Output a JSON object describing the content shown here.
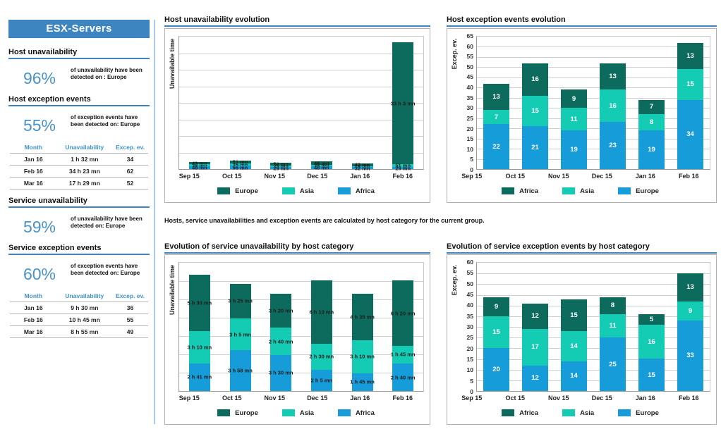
{
  "sidebar": {
    "title": "ESX-Servers",
    "sections": [
      {
        "heading": "Host unavailability",
        "percent": "96%",
        "desc": "of unavailability have been detected on :",
        "desc_bold": "Europe"
      },
      {
        "heading": "Host exception events",
        "percent": "55%",
        "desc": "of exception events have been detected on:",
        "desc_bold": "Europe"
      },
      {
        "heading": "Service unavailability",
        "percent": "59%",
        "desc": "of unavailability have been detected on:",
        "desc_bold": "Europe"
      },
      {
        "heading": "Service exception events",
        "percent": "60%",
        "desc": "of exception events have been detected on:",
        "desc_bold": "Europe"
      }
    ],
    "host_table": {
      "headers": [
        "Month",
        "Unavailability",
        "Excep. ev."
      ],
      "rows": [
        [
          "Jan 16",
          "1 h 32 mn",
          "34"
        ],
        [
          "Feb 16",
          "34 h 23 mn",
          "62"
        ],
        [
          "Mar 16",
          "17 h 29 mn",
          "52"
        ]
      ]
    },
    "service_table": {
      "headers": [
        "Month",
        "Unavailability",
        "Excep. ev."
      ],
      "rows": [
        [
          "Jan 16",
          "9 h 30 mn",
          "36"
        ],
        [
          "Feb 16",
          "10 h 45 mn",
          "55"
        ],
        [
          "Mar 16",
          "8 h 55 mn",
          "49"
        ]
      ]
    }
  },
  "note": "Hosts, service unavailabilities and exception events are calculated by host category for the current group.",
  "colors": {
    "dark": "#0d6b5e",
    "teal": "#14cbb4",
    "blue": "#169dd9",
    "accent_blue": "#3d85c1",
    "grid": "#cfcfcf"
  },
  "chart_data": [
    {
      "type": "bar",
      "stacked": true,
      "title": "Host unavailability evolution",
      "ylabel": "Unavailable time",
      "unit": "minutes",
      "categories": [
        "Sep 15",
        "Oct 15",
        "Nov 15",
        "Dec 15",
        "Jan 16",
        "Feb 16"
      ],
      "series": [
        {
          "name": "Europe",
          "color_key": "dark",
          "values": [
            43,
            51,
            52,
            48,
            42,
            1983
          ],
          "labels": [
            "43 mn",
            "51 mn",
            "52 mn",
            "48 mn",
            "42 mn",
            "33 h 3 mn"
          ]
        },
        {
          "name": "Asia",
          "color_key": "teal",
          "values": [
            28,
            35,
            25,
            25,
            18,
            51
          ],
          "labels": [
            "28 mn",
            "35 mn",
            "25 mn",
            "25 mn",
            "18 mn",
            "51 mn"
          ]
        },
        {
          "name": "Africa",
          "color_key": "blue",
          "values": [
            48,
            55,
            29,
            48,
            32,
            29
          ],
          "labels": [
            "48 mn",
            "55 mn",
            "29 mn",
            "48 mn",
            "32 mn",
            "29 mn"
          ]
        }
      ],
      "ymax": 2160,
      "gridlines": 8,
      "legend": [
        "Europe",
        "Asia",
        "Africa"
      ],
      "value_label_style": "dark-outside",
      "grid": true,
      "legend_position": "bottom"
    },
    {
      "type": "bar",
      "stacked": true,
      "title": "Host exception events evolution",
      "ylabel": "Excep. ev.",
      "categories": [
        "Sep 15",
        "Oct 15",
        "Nov 15",
        "Dec 15",
        "Jan 16",
        "Feb 16"
      ],
      "series": [
        {
          "name": "Africa",
          "color_key": "dark",
          "values": [
            13,
            16,
            9,
            13,
            7,
            13
          ]
        },
        {
          "name": "Asia",
          "color_key": "teal",
          "values": [
            7,
            15,
            11,
            16,
            8,
            15
          ]
        },
        {
          "name": "Europe",
          "color_key": "blue",
          "values": [
            22,
            21,
            19,
            23,
            19,
            34
          ]
        }
      ],
      "ymax": 65,
      "tick_step": 5,
      "legend": [
        "Africa",
        "Asia",
        "Europe"
      ],
      "value_label_style": "white-inside",
      "grid": true,
      "legend_position": "bottom"
    },
    {
      "type": "bar",
      "stacked": true,
      "title": "Evolution of service unavailability by host category",
      "ylabel": "Unavailable time",
      "unit": "minutes",
      "categories": [
        "Sep 15",
        "Oct 15",
        "Nov 15",
        "Dec 15",
        "Jan 16",
        "Feb 16"
      ],
      "series": [
        {
          "name": "Europe",
          "color_key": "dark",
          "values": [
            330,
            205,
            200,
            370,
            275,
            380
          ],
          "labels": [
            "5 h 30 mn",
            "3 h 25 mn",
            "3 h 20 mn",
            "6 h 10 mn",
            "4 h 35 mn",
            "6 h 20 mn"
          ]
        },
        {
          "name": "Asia",
          "color_key": "teal",
          "values": [
            190,
            185,
            160,
            150,
            190,
            105
          ],
          "labels": [
            "3 h 10 mn",
            "3 h 5 mn",
            "2 h 40 mn",
            "2 h 30 mn",
            "3 h 10 mn",
            "1 h 45 mn"
          ]
        },
        {
          "name": "Africa",
          "color_key": "blue",
          "values": [
            161,
            238,
            210,
            125,
            105,
            160
          ],
          "labels": [
            "2 h 41 mn",
            "3 h 58 mn",
            "3 h 30 mn",
            "2 h 5 mn",
            "1 h 45 mn",
            "2 h 40 mn"
          ]
        }
      ],
      "ymax": 750,
      "gridlines": 7,
      "legend": [
        "Europe",
        "Asia",
        "Africa"
      ],
      "value_label_style": "dark-outside",
      "grid": true,
      "legend_position": "bottom"
    },
    {
      "type": "bar",
      "stacked": true,
      "title": "Evolution of service exception events by host category",
      "ylabel": "Excep. ev.",
      "categories": [
        "Sep 15",
        "Oct 15",
        "Nov 15",
        "Dec 15",
        "Jan 16",
        "Feb 16"
      ],
      "series": [
        {
          "name": "Africa",
          "color_key": "dark",
          "values": [
            9,
            12,
            15,
            8,
            5,
            13
          ]
        },
        {
          "name": "Asia",
          "color_key": "teal",
          "values": [
            15,
            17,
            14,
            11,
            16,
            9
          ]
        },
        {
          "name": "Europe",
          "color_key": "blue",
          "values": [
            20,
            12,
            14,
            25,
            15,
            33
          ]
        }
      ],
      "ymax": 60,
      "tick_step": 5,
      "legend": [
        "Africa",
        "Asia",
        "Europe"
      ],
      "value_label_style": "white-inside",
      "grid": true,
      "legend_position": "bottom"
    }
  ]
}
